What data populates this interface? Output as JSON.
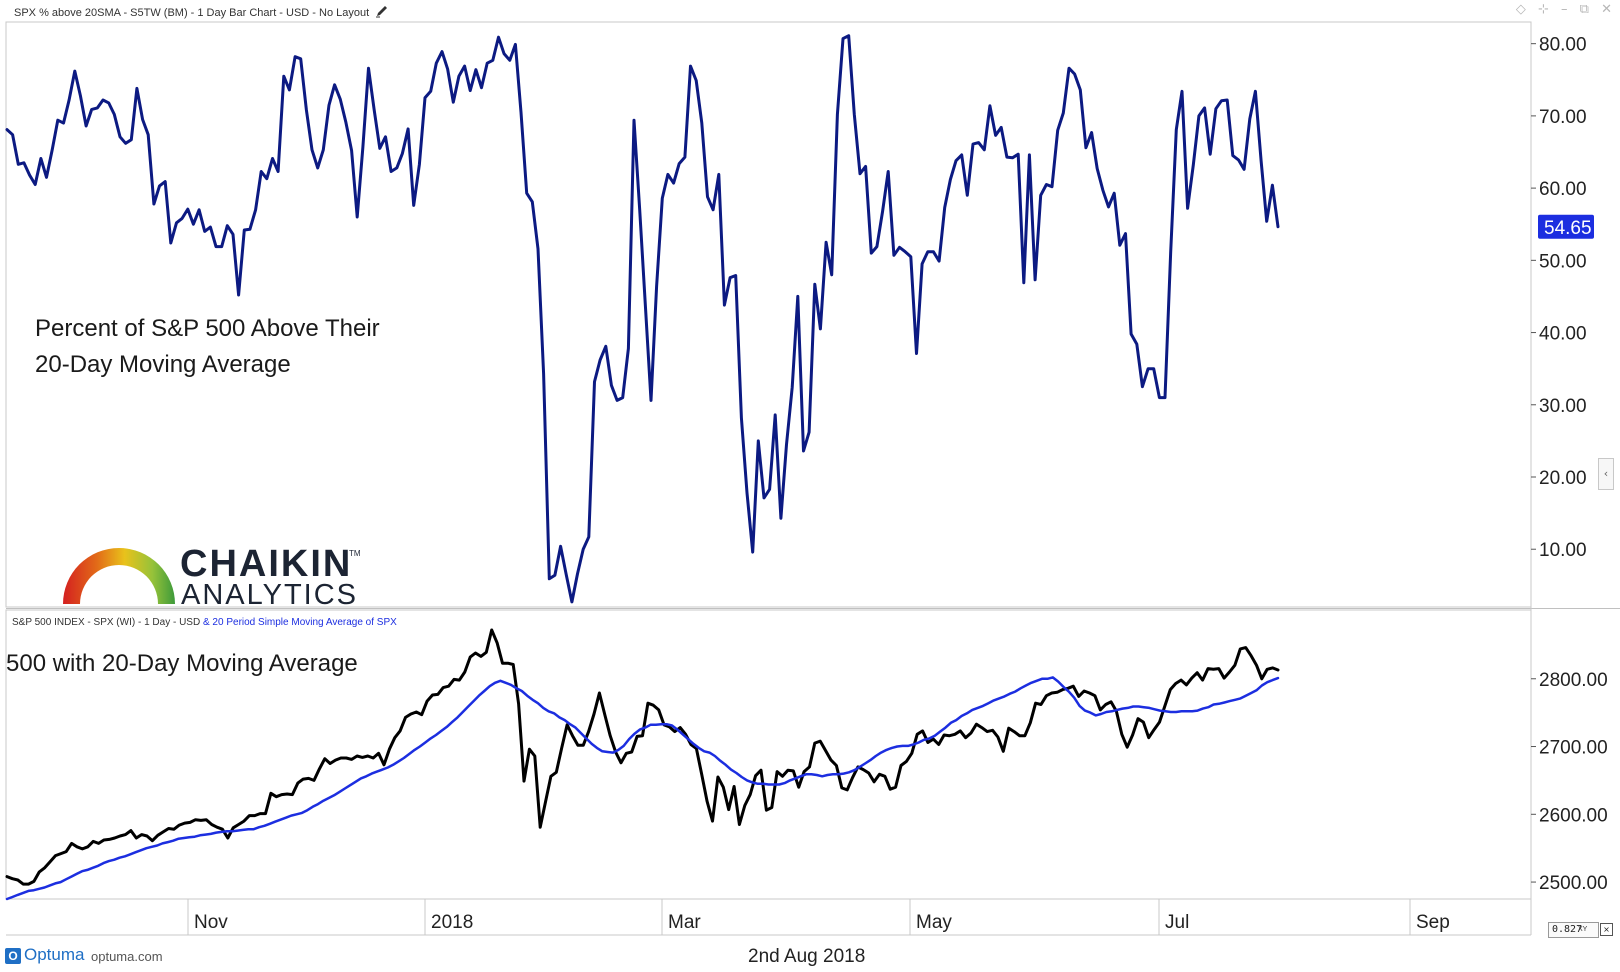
{
  "header": {
    "title": "SPX % above 20SMA - S5TW (BM) - 1 Day Bar Chart - USD - No Layout",
    "edit_icon": "pencil-icon",
    "window_icons": [
      "diamond-icon",
      "pin-icon",
      "minimize-icon",
      "restore-icon",
      "close-icon"
    ]
  },
  "colors": {
    "breadth": "#0c1a82",
    "spx": "#000000",
    "sma": "#1c2ee0",
    "accent": "#1c2ee0"
  },
  "upper_panel": {
    "annotation_line1": "Percent of S&P 500 Above Their",
    "annotation_line2": "20-Day Moving Average",
    "last_value_label": "54.65"
  },
  "logo": {
    "name": "CHAIKIN",
    "sub": "ANALYTICS",
    "tm": "TM"
  },
  "lower_panel": {
    "legend_main": "S&P 500 INDEX - SPX (WI) - 1 Day - USD ",
    "legend_sma": "& 20 Period Simple Moving Average of SPX",
    "annotation": "500 with 20-Day Moving Average"
  },
  "footer": {
    "brand": "Optuma",
    "url": "optuma.com",
    "date": "2nd Aug 2018",
    "zoom_value": "0.827",
    "zoom_xy": "XY",
    "close_glyph": "×"
  },
  "chart_data": [
    {
      "type": "line",
      "ylim": [
        2,
        83
      ],
      "x_ticks": [
        "Nov",
        "2018",
        "Mar",
        "May",
        "Jul",
        "Sep"
      ],
      "y_ticks": [
        "10.00",
        "20.00",
        "30.00",
        "40.00",
        "50.00",
        "60.00",
        "70.00",
        "80.00"
      ],
      "y_tick_values": [
        10,
        20,
        30,
        40,
        50,
        60,
        70,
        80
      ],
      "last_value": 54.65,
      "series": [
        {
          "values": [
            68.1,
            67.4,
            63.3,
            63.5,
            61.8,
            60.5,
            64.1,
            61.5,
            65.3,
            69.4,
            69.0,
            72.2,
            76.2,
            72.8,
            68.6,
            70.9,
            71.1,
            72.2,
            71.8,
            70.2,
            67.1,
            66.2,
            66.7,
            73.8,
            69.5,
            67.4,
            57.8,
            60.3,
            60.9,
            52.4,
            55.2,
            55.8,
            57.1,
            55.0,
            57.0,
            54.0,
            54.6,
            51.9,
            51.9,
            54.8,
            53.6,
            45.2,
            54.2,
            54.3,
            57.0,
            62.3,
            61.3,
            64.1,
            62.3,
            75.5,
            73.6,
            78.2,
            77.9,
            70.8,
            65.3,
            62.8,
            65.3,
            71.5,
            74.3,
            72.3,
            69.1,
            65.2,
            56.0,
            65.7,
            76.6,
            70.8,
            65.5,
            67.1,
            62.3,
            62.8,
            64.8,
            68.2,
            57.6,
            63.3,
            72.5,
            73.4,
            77.3,
            78.9,
            76.5,
            71.9,
            75.5,
            76.9,
            73.5,
            76.4,
            73.9,
            77.3,
            77.7,
            80.9,
            78.6,
            77.7,
            79.9,
            70.5,
            59.3,
            58.1,
            51.6,
            34.3,
            5.9,
            6.4,
            10.4,
            6.5,
            2.7,
            6.6,
            10.0,
            11.7,
            33.2,
            36.2,
            38.1,
            32.7,
            30.6,
            31.0,
            37.8,
            69.4,
            57.0,
            43.9,
            30.6,
            46.4,
            58.6,
            61.9,
            60.7,
            63.4,
            64.3,
            76.9,
            74.9,
            69.0,
            58.8,
            57.0,
            61.9,
            43.8,
            47.6,
            47.9,
            28.2,
            17.8,
            9.6,
            25.0,
            17.1,
            18.3,
            28.6,
            14.3,
            24.5,
            32.4,
            45.0,
            23.6,
            26.2,
            46.7,
            40.5,
            52.5,
            48.0,
            70.2,
            80.7,
            81.1,
            70.2,
            62.0,
            63.0,
            51.0,
            51.9,
            56.8,
            62.3,
            50.7,
            51.8,
            51.2,
            50.5,
            37.1,
            49.5,
            51.2,
            51.2,
            49.9,
            57.3,
            61.2,
            63.8,
            64.6,
            59.0,
            66.1,
            66.3,
            65.3,
            71.4,
            67.3,
            68.4,
            64.3,
            64.2,
            64.7,
            46.9,
            64.6,
            47.3,
            59.0,
            60.5,
            60.2,
            68.0,
            70.4,
            76.6,
            75.8,
            73.6,
            65.6,
            67.7,
            62.7,
            59.7,
            57.4,
            59.3,
            52.1,
            53.7,
            39.8,
            38.4,
            32.5,
            35.0,
            35.0,
            31.0,
            31.0,
            51.2,
            68.1,
            73.4,
            57.2,
            63.2,
            70.0,
            71.1,
            64.7,
            71.0,
            72.1,
            72.2,
            64.5,
            63.9,
            62.6,
            69.6,
            73.4,
            63.8,
            55.4,
            60.4,
            54.65
          ]
        }
      ]
    },
    {
      "type": "line",
      "ylim": [
        2475,
        2900
      ],
      "x_ticks": [
        "Nov",
        "2018",
        "Mar",
        "May",
        "Jul",
        "Sep"
      ],
      "y_ticks": [
        "2500.00",
        "2600.00",
        "2700.00",
        "2800.00"
      ],
      "y_tick_values": [
        2500,
        2600,
        2700,
        2800
      ],
      "series": [
        {
          "name": "S&P 500 INDEX - SPX (WI) - 1 Day - USD",
          "values": [
            2508,
            2505,
            2503,
            2497,
            2497,
            2501,
            2515,
            2521,
            2530,
            2539,
            2542,
            2545,
            2557,
            2552,
            2549,
            2552,
            2560,
            2557,
            2562,
            2563,
            2565,
            2568,
            2570,
            2576,
            2565,
            2570,
            2568,
            2561,
            2569,
            2574,
            2579,
            2578,
            2584,
            2587,
            2588,
            2592,
            2591,
            2592,
            2585,
            2581,
            2578,
            2565,
            2580,
            2585,
            2590,
            2598,
            2598,
            2601,
            2601,
            2631,
            2626,
            2629,
            2630,
            2629,
            2646,
            2652,
            2653,
            2650,
            2667,
            2682,
            2675,
            2680,
            2683,
            2683,
            2681,
            2686,
            2684,
            2686,
            2683,
            2690,
            2673,
            2696,
            2713,
            2723,
            2743,
            2748,
            2751,
            2747,
            2767,
            2776,
            2777,
            2787,
            2789,
            2799,
            2798,
            2810,
            2832,
            2838,
            2833,
            2839,
            2872,
            2853,
            2823,
            2823,
            2821,
            2763,
            2649,
            2696,
            2686,
            2581,
            2619,
            2656,
            2662,
            2698,
            2732,
            2716,
            2702,
            2702,
            2722,
            2748,
            2779,
            2747,
            2716,
            2692,
            2676,
            2690,
            2692,
            2715,
            2716,
            2764,
            2761,
            2754,
            2732,
            2729,
            2722,
            2728,
            2718,
            2703,
            2697,
            2659,
            2619,
            2590,
            2655,
            2640,
            2607,
            2641,
            2585,
            2613,
            2629,
            2657,
            2665,
            2606,
            2610,
            2663,
            2656,
            2665,
            2664,
            2640,
            2663,
            2670,
            2705,
            2708,
            2694,
            2680,
            2672,
            2639,
            2636,
            2654,
            2670,
            2666,
            2661,
            2648,
            2659,
            2656,
            2637,
            2640,
            2672,
            2678,
            2690,
            2718,
            2723,
            2706,
            2711,
            2703,
            2717,
            2716,
            2718,
            2723,
            2713,
            2720,
            2733,
            2728,
            2722,
            2724,
            2714,
            2693,
            2727,
            2722,
            2716,
            2716,
            2735,
            2764,
            2762,
            2775,
            2779,
            2780,
            2784,
            2786,
            2789,
            2774,
            2782,
            2779,
            2775,
            2754,
            2762,
            2766,
            2752,
            2718,
            2699,
            2717,
            2741,
            2736,
            2713,
            2725,
            2736,
            2760,
            2784,
            2793,
            2798,
            2791,
            2801,
            2809,
            2798,
            2815,
            2814,
            2815,
            2801,
            2810,
            2820,
            2844,
            2846,
            2834,
            2820,
            2800,
            2814,
            2816,
            2813
          ]
        },
        {
          "name": "20 Period Simple Moving Average of SPX",
          "values": [
            2475,
            2478,
            2481,
            2484,
            2487,
            2488,
            2490,
            2492,
            2495,
            2498,
            2500,
            2504,
            2508,
            2512,
            2516,
            2518,
            2521,
            2524,
            2528,
            2531,
            2533,
            2536,
            2538,
            2541,
            2544,
            2547,
            2550,
            2552,
            2554,
            2557,
            2559,
            2561,
            2564,
            2565,
            2566,
            2567,
            2569,
            2570,
            2571,
            2573,
            2574,
            2575,
            2575,
            2576,
            2577,
            2578,
            2578,
            2581,
            2583,
            2586,
            2589,
            2592,
            2595,
            2598,
            2600,
            2602,
            2606,
            2611,
            2615,
            2620,
            2624,
            2628,
            2633,
            2638,
            2643,
            2648,
            2653,
            2656,
            2660,
            2663,
            2666,
            2669,
            2673,
            2678,
            2683,
            2689,
            2695,
            2700,
            2706,
            2712,
            2717,
            2723,
            2729,
            2736,
            2743,
            2751,
            2759,
            2767,
            2775,
            2782,
            2789,
            2794,
            2797,
            2794,
            2791,
            2786,
            2782,
            2775,
            2769,
            2764,
            2757,
            2752,
            2749,
            2743,
            2739,
            2733,
            2728,
            2720,
            2712,
            2704,
            2698,
            2693,
            2692,
            2691,
            2695,
            2701,
            2711,
            2719,
            2725,
            2728,
            2732,
            2732,
            2733,
            2733,
            2731,
            2725,
            2718,
            2711,
            2704,
            2698,
            2693,
            2691,
            2686,
            2679,
            2673,
            2666,
            2661,
            2655,
            2650,
            2647,
            2645,
            2645,
            2644,
            2644,
            2644,
            2646,
            2650,
            2653,
            2656,
            2659,
            2659,
            2658,
            2656,
            2658,
            2659,
            2659,
            2660,
            2662,
            2665,
            2670,
            2675,
            2680,
            2686,
            2691,
            2695,
            2698,
            2700,
            2701,
            2701,
            2703,
            2706,
            2710,
            2712,
            2716,
            2722,
            2728,
            2735,
            2739,
            2745,
            2749,
            2754,
            2757,
            2760,
            2764,
            2768,
            2771,
            2774,
            2778,
            2781,
            2786,
            2790,
            2794,
            2797,
            2800,
            2800,
            2802,
            2796,
            2788,
            2781,
            2772,
            2760,
            2753,
            2750,
            2746,
            2748,
            2751,
            2752,
            2754,
            2756,
            2757,
            2759,
            2759,
            2758,
            2757,
            2755,
            2753,
            2752,
            2751,
            2751,
            2752,
            2752,
            2752,
            2753,
            2756,
            2758,
            2762,
            2763,
            2765,
            2767,
            2769,
            2771,
            2775,
            2779,
            2783,
            2790,
            2795,
            2798,
            2801
          ]
        }
      ]
    }
  ]
}
